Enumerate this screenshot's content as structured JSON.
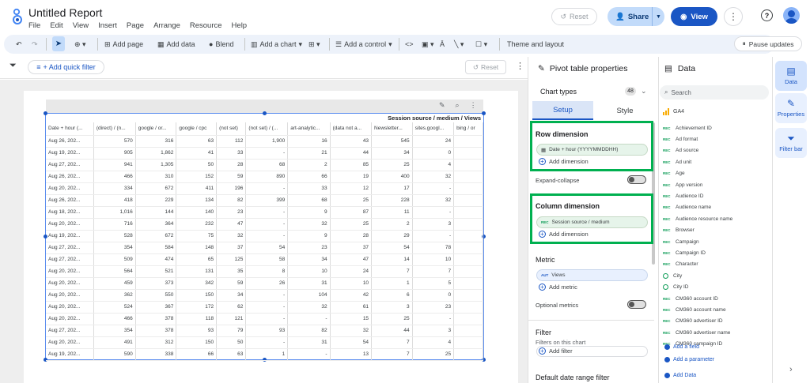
{
  "header": {
    "title": "Untitled Report",
    "menu": [
      "File",
      "Edit",
      "View",
      "Insert",
      "Page",
      "Arrange",
      "Resource",
      "Help"
    ],
    "reset_label": "Reset",
    "share_label": "Share",
    "view_label": "View"
  },
  "toolbar": {
    "add_page": "Add page",
    "add_data": "Add data",
    "blend": "Blend",
    "add_chart": "Add a chart",
    "add_control": "Add a control",
    "theme_layout": "Theme and layout",
    "pause_updates": "Pause updates"
  },
  "filterbar": {
    "quick_filter": "+ Add quick filter",
    "reset": "Reset"
  },
  "pivot": {
    "title": "Session source / medium / Views",
    "headers": [
      "Date + hour (...",
      "(direct) / (n...",
      "google / or...",
      "google / cpc",
      "(not set)",
      "(not set) / (...",
      "art-analytic...",
      "(data not a...",
      "Newsletter...",
      "sites.googl...",
      "bing / or"
    ],
    "rows": [
      [
        "Aug 26, 202...",
        "570",
        "316",
        "63",
        "112",
        "1,900",
        "16",
        "43",
        "545",
        "24",
        ""
      ],
      [
        "Aug 19, 202...",
        "905",
        "1,862",
        "41",
        "33",
        "-",
        "21",
        "44",
        "34",
        "0",
        ""
      ],
      [
        "Aug 27, 202...",
        "941",
        "1,305",
        "50",
        "28",
        "68",
        "2",
        "85",
        "25",
        "4",
        ""
      ],
      [
        "Aug 26, 202...",
        "466",
        "310",
        "152",
        "59",
        "890",
        "66",
        "19",
        "400",
        "32",
        ""
      ],
      [
        "Aug 20, 202...",
        "334",
        "672",
        "411",
        "196",
        "-",
        "33",
        "12",
        "17",
        "-",
        ""
      ],
      [
        "Aug 26, 202...",
        "418",
        "229",
        "134",
        "82",
        "399",
        "68",
        "25",
        "228",
        "32",
        ""
      ],
      [
        "Aug 18, 202...",
        "1,016",
        "144",
        "140",
        "23",
        "-",
        "9",
        "87",
        "11",
        "-",
        ""
      ],
      [
        "Aug 20, 202...",
        "716",
        "364",
        "232",
        "47",
        "-",
        "32",
        "25",
        "2",
        "3",
        ""
      ],
      [
        "Aug 19, 202...",
        "528",
        "672",
        "75",
        "32",
        "-",
        "9",
        "28",
        "29",
        "-",
        ""
      ],
      [
        "Aug 27, 202...",
        "354",
        "584",
        "148",
        "37",
        "54",
        "23",
        "37",
        "54",
        "78",
        ""
      ],
      [
        "Aug 27, 202...",
        "509",
        "474",
        "65",
        "125",
        "58",
        "34",
        "47",
        "14",
        "10",
        ""
      ],
      [
        "Aug 20, 202...",
        "564",
        "521",
        "131",
        "35",
        "8",
        "10",
        "24",
        "7",
        "7",
        ""
      ],
      [
        "Aug 20, 202...",
        "459",
        "373",
        "342",
        "59",
        "26",
        "31",
        "10",
        "1",
        "5",
        ""
      ],
      [
        "Aug 20, 202...",
        "362",
        "550",
        "150",
        "34",
        "-",
        "104",
        "42",
        "6",
        "0",
        ""
      ],
      [
        "Aug 20, 202...",
        "524",
        "367",
        "172",
        "62",
        "-",
        "32",
        "61",
        "3",
        "23",
        ""
      ],
      [
        "Aug 20, 202...",
        "466",
        "378",
        "118",
        "121",
        "-",
        "-",
        "15",
        "25",
        "-",
        ""
      ],
      [
        "Aug 27, 202...",
        "354",
        "378",
        "93",
        "79",
        "93",
        "82",
        "32",
        "44",
        "3",
        ""
      ],
      [
        "Aug 20, 202...",
        "491",
        "312",
        "150",
        "50",
        "-",
        "31",
        "54",
        "7",
        "4",
        ""
      ],
      [
        "Aug 19, 202...",
        "590",
        "338",
        "66",
        "63",
        "1",
        "-",
        "13",
        "7",
        "25",
        ""
      ]
    ]
  },
  "props": {
    "title": "Pivot table properties",
    "chart_types": "Chart types",
    "chart_types_count": "48",
    "tab_setup": "Setup",
    "tab_style": "Style",
    "row_dimension": "Row dimension",
    "row_chip": "Date + hour (YYYYMMDDHH)",
    "add_dimension": "Add dimension",
    "expand_collapse": "Expand-collapse",
    "column_dimension": "Column dimension",
    "column_chip": "Session source / medium",
    "metric": "Metric",
    "metric_chip": "Views",
    "metric_chip_type": "AUT",
    "add_metric": "Add metric",
    "optional_metrics": "Optional metrics",
    "filter": "Filter",
    "filters_on_chart": "Filters on this chart",
    "add_filter": "Add filter",
    "date_range": "Default date range filter"
  },
  "data_panel": {
    "title": "Data",
    "search_placeholder": "Search",
    "source": "GA4",
    "fields": [
      {
        "type": "REC",
        "name": "Achievement ID"
      },
      {
        "type": "REC",
        "name": "Ad format"
      },
      {
        "type": "REC",
        "name": "Ad source"
      },
      {
        "type": "REC",
        "name": "Ad unit"
      },
      {
        "type": "REC",
        "name": "Age"
      },
      {
        "type": "REC",
        "name": "App version"
      },
      {
        "type": "REC",
        "name": "Audience ID"
      },
      {
        "type": "REC",
        "name": "Audience name"
      },
      {
        "type": "REC",
        "name": "Audience resource name"
      },
      {
        "type": "REC",
        "name": "Browser"
      },
      {
        "type": "REC",
        "name": "Campaign"
      },
      {
        "type": "REC",
        "name": "Campaign ID"
      },
      {
        "type": "REC",
        "name": "Character"
      },
      {
        "type": "GEO",
        "name": "City"
      },
      {
        "type": "GEO",
        "name": "City ID"
      },
      {
        "type": "REC",
        "name": "CM360 account ID"
      },
      {
        "type": "REC",
        "name": "CM360 account name"
      },
      {
        "type": "REC",
        "name": "CM360 advertiser ID"
      },
      {
        "type": "REC",
        "name": "CM360 advertiser name"
      },
      {
        "type": "REC",
        "name": "CM360 campaign ID"
      }
    ],
    "add_field": "Add a field",
    "add_parameter": "Add a parameter",
    "add_data": "Add Data"
  },
  "rail": {
    "data": "Data",
    "properties": "Properties",
    "filter_bar": "Filter bar"
  }
}
